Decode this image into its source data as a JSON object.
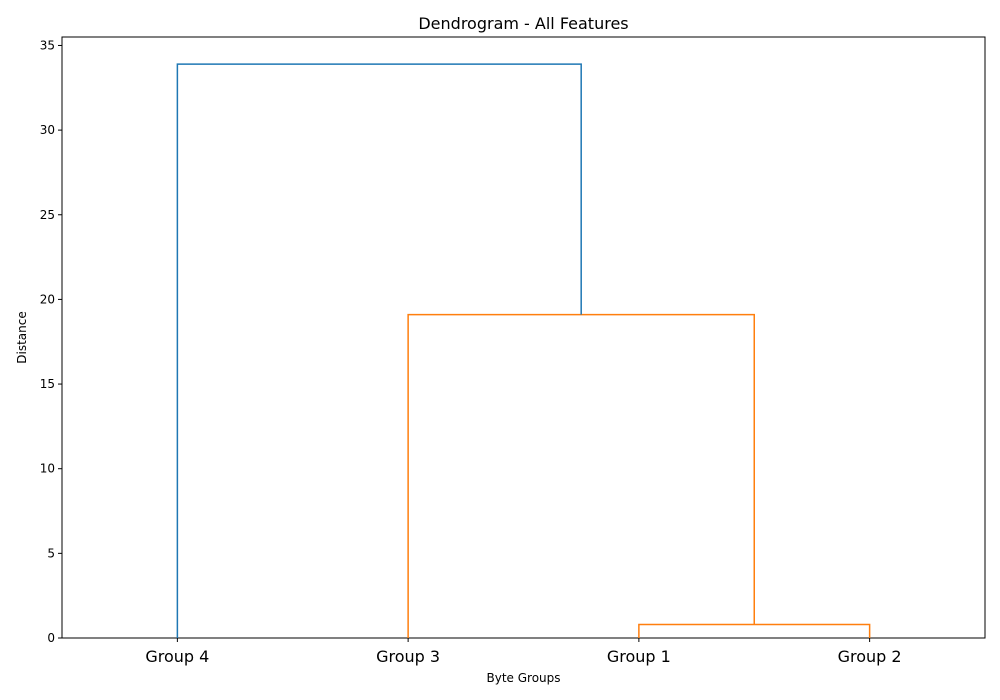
{
  "chart_data": {
    "type": "dendrogram",
    "title": "Dendrogram - All Features",
    "xlabel": "Byte Groups",
    "ylabel": "Distance",
    "ylim": [
      0,
      35.5
    ],
    "yticks": [
      0,
      5,
      10,
      15,
      20,
      25,
      30,
      35
    ],
    "leaves": [
      "Group 4",
      "Group 3",
      "Group 1",
      "Group 2"
    ],
    "merges": [
      {
        "left": "Group 1",
        "right": "Group 2",
        "height": 0.8,
        "color": "#ff7f0e"
      },
      {
        "left": "Group 3",
        "right": "(Group 1, Group 2)",
        "height": 19.1,
        "color": "#ff7f0e"
      },
      {
        "left": "Group 4",
        "right": "(Group 3, Group 1, Group 2)",
        "height": 33.9,
        "color": "#1f77b4"
      }
    ],
    "colors": {
      "link_default": "#1f77b4",
      "cluster_1": "#ff7f0e"
    },
    "grid": false,
    "legend": "none"
  }
}
